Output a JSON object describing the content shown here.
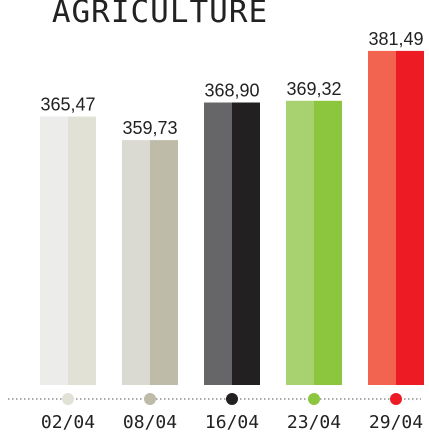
{
  "chart_data": {
    "type": "bar",
    "title": "AGRICULTURE",
    "xlabel": "",
    "ylabel": "",
    "ylim": [
      300,
      385
    ],
    "categories": [
      "02/04",
      "08/04",
      "16/04",
      "23/04",
      "29/04"
    ],
    "values": [
      365.47,
      359.73,
      368.9,
      369.32,
      381.49
    ],
    "value_labels": [
      "365,47",
      "359,73",
      "368,90",
      "369,32",
      "381,49"
    ],
    "bar_colors": [
      {
        "light": "#ececea",
        "dark": "#e1e1d6"
      },
      {
        "light": "#dadad2",
        "dark": "#bebba8"
      },
      {
        "light": "#666669",
        "dark": "#222021"
      },
      {
        "light": "#a8d16f",
        "dark": "#8cc63f"
      },
      {
        "light": "#f26450",
        "dark": "#ed1c24"
      }
    ],
    "dot_colors": [
      "#e1e1d6",
      "#bebba8",
      "#222021",
      "#8cc63f",
      "#ed1c24"
    ],
    "grid": false,
    "legend": "none"
  }
}
